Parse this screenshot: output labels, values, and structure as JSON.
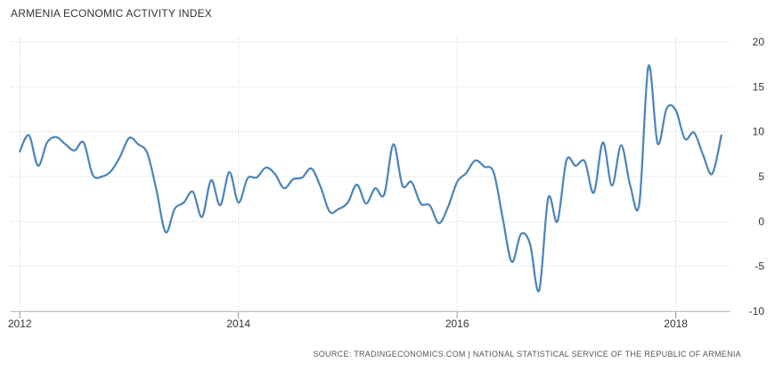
{
  "chart_data": {
    "type": "line",
    "title": "ARMENIA ECONOMIC ACTIVITY INDEX",
    "xlabel": "",
    "ylabel": "",
    "x_ticks": [
      "2012",
      "2014",
      "2016",
      "2018"
    ],
    "y_ticks": [
      "20",
      "15",
      "10",
      "5",
      "0",
      "-5",
      "-10"
    ],
    "ylim": [
      -10,
      20
    ],
    "xlim": [
      "2011-12",
      "2018-07"
    ],
    "grid": true,
    "line_color": "#4a84b8",
    "series": [
      {
        "x": [
          "2012-01",
          "2012-02",
          "2012-03",
          "2012-04",
          "2012-05",
          "2012-06",
          "2012-07",
          "2012-08",
          "2012-09",
          "2012-10",
          "2012-11",
          "2012-12",
          "2013-01",
          "2013-02",
          "2013-03",
          "2013-04",
          "2013-05",
          "2013-06",
          "2013-07",
          "2013-08",
          "2013-09",
          "2013-10",
          "2013-11",
          "2013-12",
          "2014-01",
          "2014-02",
          "2014-03",
          "2014-04",
          "2014-05",
          "2014-06",
          "2014-07",
          "2014-08",
          "2014-09",
          "2014-10",
          "2014-11",
          "2014-12",
          "2015-01",
          "2015-02",
          "2015-03",
          "2015-04",
          "2015-05",
          "2015-06",
          "2015-07",
          "2015-08",
          "2015-09",
          "2015-10",
          "2015-11",
          "2015-12",
          "2016-01",
          "2016-02",
          "2016-03",
          "2016-04",
          "2016-05",
          "2016-06",
          "2016-07",
          "2016-08",
          "2016-09",
          "2016-10",
          "2016-11",
          "2016-12",
          "2017-01",
          "2017-02",
          "2017-03",
          "2017-04",
          "2017-05",
          "2017-06",
          "2017-07",
          "2017-08",
          "2017-09",
          "2017-10",
          "2017-11",
          "2017-12",
          "2018-01",
          "2018-02",
          "2018-03",
          "2018-04",
          "2018-05",
          "2018-06"
        ],
        "values": [
          7.8,
          9.6,
          6.2,
          8.8,
          9.4,
          8.6,
          7.9,
          8.8,
          5.2,
          5.0,
          5.6,
          7.2,
          9.3,
          8.6,
          7.6,
          3.5,
          -1.2,
          1.4,
          2.1,
          3.3,
          0.5,
          4.6,
          1.8,
          5.5,
          2.1,
          4.8,
          4.9,
          6.0,
          5.3,
          3.7,
          4.7,
          4.9,
          5.9,
          3.9,
          1.1,
          1.4,
          2.1,
          4.1,
          2.0,
          3.7,
          3.0,
          8.6,
          4.0,
          4.4,
          2.0,
          1.8,
          -0.2,
          1.6,
          4.4,
          5.4,
          6.8,
          6.1,
          5.5,
          0.4,
          -4.5,
          -1.4,
          -2.5,
          -7.7,
          2.6,
          0.0,
          6.8,
          6.2,
          6.7,
          3.2,
          8.8,
          4.0,
          8.5,
          4.0,
          2.0,
          17.3,
          8.7,
          12.6,
          12.4,
          9.2,
          9.9,
          7.4,
          5.3,
          9.6
        ]
      }
    ]
  },
  "source": "SOURCE: TRADINGECONOMICS.COM | NATIONAL STATISTICAL SERVICE OF THE REPUBLIC OF ARMENIA"
}
